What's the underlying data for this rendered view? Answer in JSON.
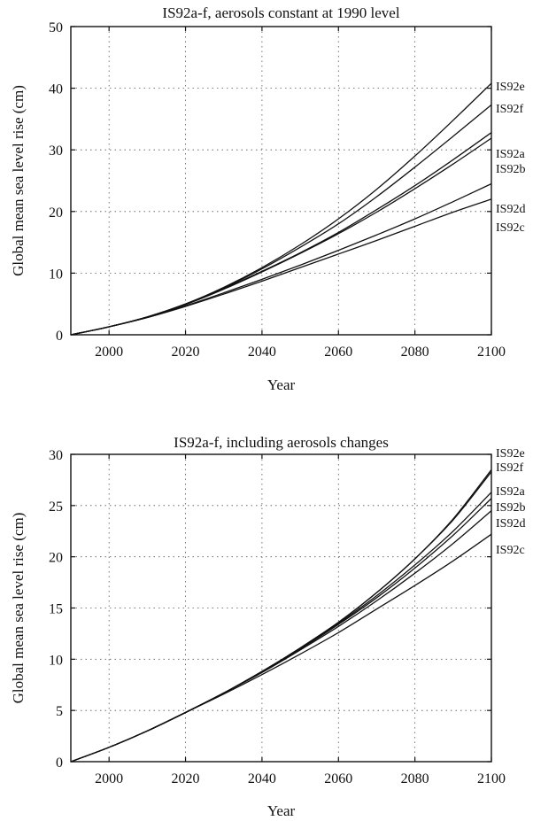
{
  "chart_data": [
    {
      "type": "line",
      "title": "IS92a-f, aerosols constant at 1990 level",
      "xlabel": "Year",
      "ylabel": "Global mean sea level rise (cm)",
      "xlim": [
        1990,
        2100
      ],
      "ylim": [
        0,
        50
      ],
      "xticks": [
        "2000",
        "2020",
        "2040",
        "2060",
        "2080",
        "2100"
      ],
      "yticks": [
        "0",
        "10",
        "20",
        "30",
        "40",
        "50"
      ],
      "grid": true,
      "x": [
        1990,
        2000,
        2010,
        2020,
        2030,
        2040,
        2050,
        2060,
        2070,
        2080,
        2090,
        2100
      ],
      "series": [
        {
          "name": "IS92e",
          "values": [
            0,
            1.3,
            2.9,
            5.0,
            7.7,
            10.9,
            14.6,
            18.8,
            23.6,
            29.0,
            34.8,
            40.8
          ]
        },
        {
          "name": "IS92f",
          "values": [
            0,
            1.3,
            2.9,
            5.0,
            7.6,
            10.7,
            14.2,
            18.0,
            22.4,
            27.2,
            32.2,
            37.3
          ]
        },
        {
          "name": "IS92a",
          "values": [
            0,
            1.3,
            2.9,
            5.0,
            7.5,
            10.3,
            13.3,
            16.6,
            20.3,
            24.2,
            28.4,
            32.8
          ]
        },
        {
          "name": "IS92b",
          "values": [
            0,
            1.3,
            2.9,
            4.9,
            7.4,
            10.2,
            13.2,
            16.4,
            19.9,
            23.7,
            27.7,
            31.9
          ]
        },
        {
          "name": "IS92d",
          "values": [
            0,
            1.3,
            2.8,
            4.7,
            6.8,
            9.0,
            11.3,
            13.7,
            16.2,
            18.8,
            21.6,
            24.5
          ]
        },
        {
          "name": "IS92c",
          "values": [
            0,
            1.3,
            2.8,
            4.6,
            6.6,
            8.7,
            10.9,
            13.1,
            15.3,
            17.6,
            19.9,
            22.0
          ]
        }
      ]
    },
    {
      "type": "line",
      "title": "IS92a-f, including aerosols changes",
      "xlabel": "Year",
      "ylabel": "Global mean sea level rise (cm)",
      "xlim": [
        1990,
        2100
      ],
      "ylim": [
        0,
        30
      ],
      "xticks": [
        "2000",
        "2020",
        "2040",
        "2060",
        "2080",
        "2100"
      ],
      "yticks": [
        "0",
        "5",
        "10",
        "15",
        "20",
        "25",
        "30"
      ],
      "grid": true,
      "x": [
        1990,
        2000,
        2010,
        2020,
        2030,
        2040,
        2050,
        2060,
        2070,
        2080,
        2090,
        2100
      ],
      "series": [
        {
          "name": "IS92e",
          "values": [
            0,
            1.4,
            3.0,
            4.8,
            6.7,
            8.8,
            11.1,
            13.6,
            16.5,
            19.8,
            23.7,
            28.5
          ]
        },
        {
          "name": "IS92f",
          "values": [
            0,
            1.4,
            3.0,
            4.8,
            6.7,
            8.8,
            11.1,
            13.6,
            16.5,
            19.8,
            23.6,
            28.3
          ]
        },
        {
          "name": "IS92a",
          "values": [
            0,
            1.4,
            3.0,
            4.8,
            6.7,
            8.8,
            11.0,
            13.5,
            16.2,
            19.2,
            22.5,
            26.3
          ]
        },
        {
          "name": "IS92b",
          "values": [
            0,
            1.4,
            3.0,
            4.8,
            6.7,
            8.8,
            11.0,
            13.4,
            16.0,
            18.9,
            22.1,
            25.7
          ]
        },
        {
          "name": "IS92d",
          "values": [
            0,
            1.4,
            3.0,
            4.8,
            6.7,
            8.7,
            10.9,
            13.2,
            15.7,
            18.4,
            21.3,
            24.5
          ]
        },
        {
          "name": "IS92c",
          "values": [
            0,
            1.4,
            3.0,
            4.8,
            6.6,
            8.5,
            10.5,
            12.6,
            14.9,
            17.2,
            19.6,
            22.2
          ]
        }
      ]
    }
  ]
}
